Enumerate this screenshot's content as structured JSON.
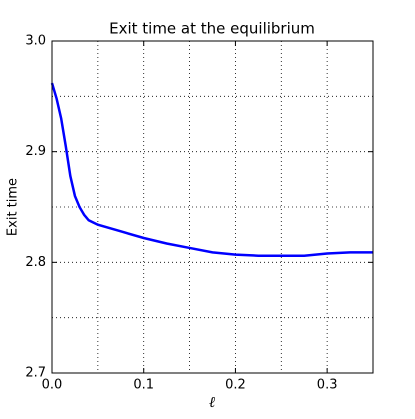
{
  "chart_data": {
    "type": "line",
    "title": "Exit time at the equilibrium",
    "x_label": "ℓ",
    "y_label": "Exit time",
    "x": [
      0,
      0.005,
      0.01,
      0.015,
      0.02,
      0.025,
      0.03,
      0.035,
      0.04,
      0.045,
      0.05,
      0.075,
      0.1,
      0.125,
      0.15,
      0.175,
      0.2,
      0.225,
      0.25,
      0.275,
      0.3,
      0.325,
      0.35
    ],
    "series": [
      {
        "name": "Exit time",
        "color": "#0000ff",
        "values": [
          2.962,
          2.948,
          2.93,
          2.905,
          2.878,
          2.86,
          2.85,
          2.843,
          2.838,
          2.836,
          2.834,
          2.828,
          2.822,
          2.817,
          2.813,
          2.809,
          2.807,
          2.806,
          2.806,
          2.806,
          2.808,
          2.809,
          2.809
        ]
      }
    ],
    "xlim": [
      0,
      0.35
    ],
    "xticks": [
      {
        "value": 0,
        "label": "0.0"
      },
      0.1,
      0.2,
      0.3
    ],
    "ylim": [
      2.7,
      3
    ],
    "yticks": [
      2.7,
      2.8,
      2.9,
      {
        "value": 3,
        "label": "3.0"
      }
    ],
    "grid": true
  }
}
